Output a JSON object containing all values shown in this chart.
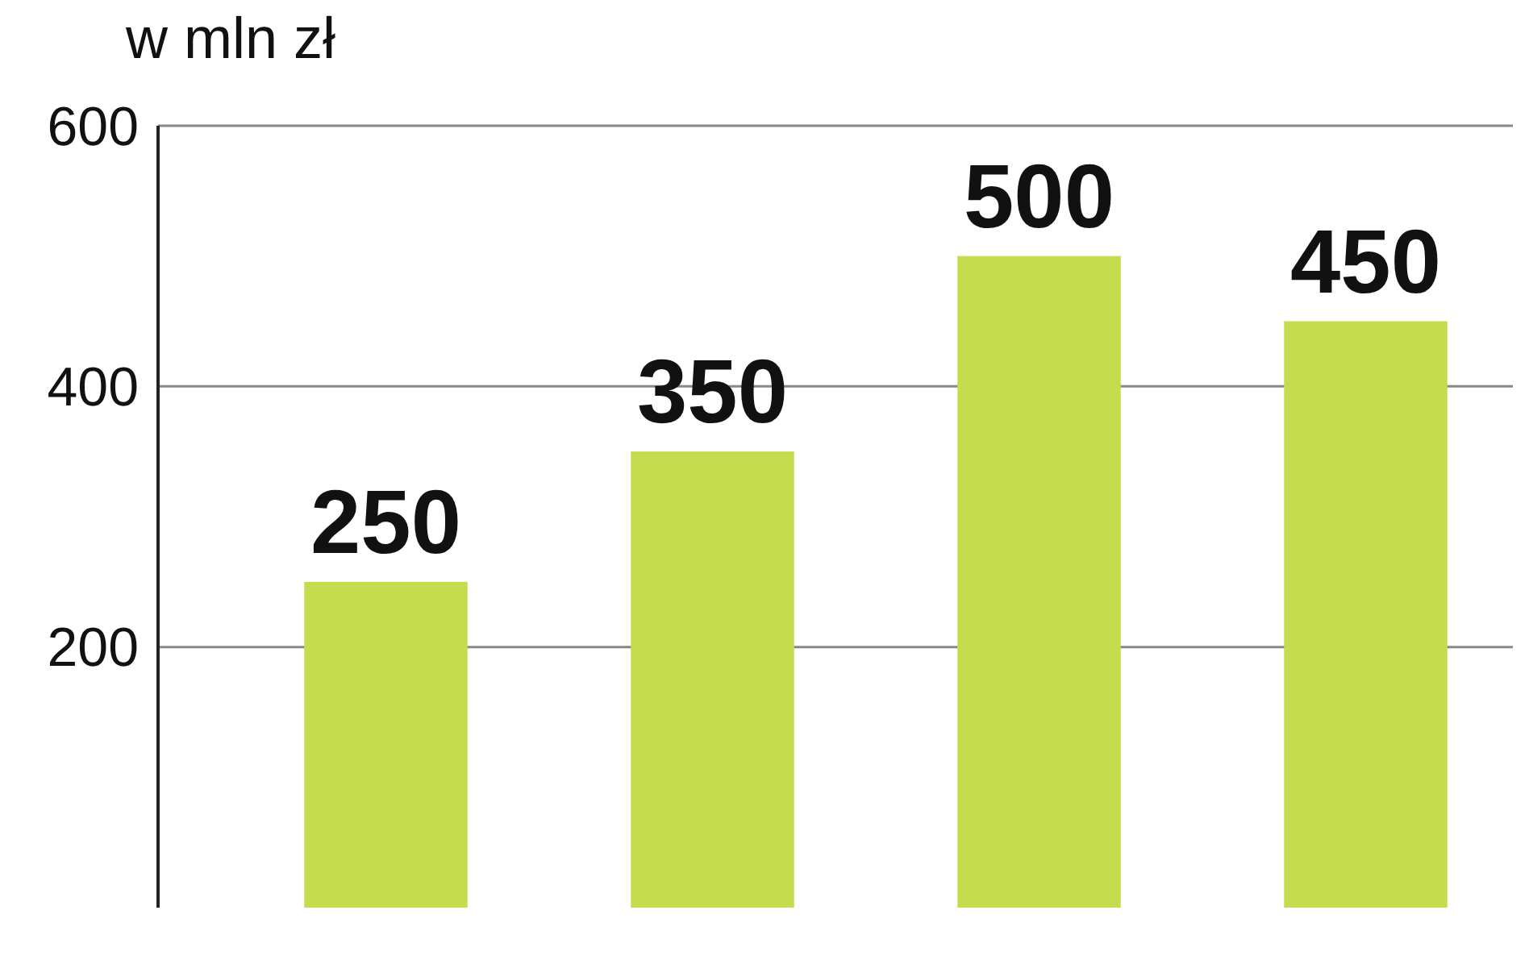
{
  "chart_data": {
    "type": "bar",
    "title": "w mln zł",
    "categories": [
      null,
      null,
      null,
      null
    ],
    "values": [
      250,
      350,
      500,
      450
    ],
    "color": "#c5dc4f",
    "ylim": [
      0,
      600
    ],
    "yticks": [
      200,
      400,
      600
    ],
    "grid": "y",
    "data_labels": true
  }
}
